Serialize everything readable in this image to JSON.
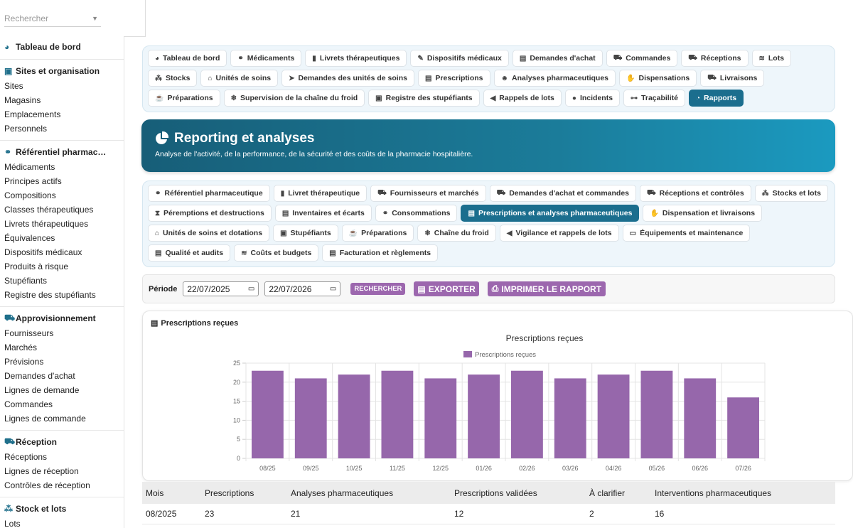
{
  "search": {
    "placeholder": "Rechercher"
  },
  "sidebar": {
    "sections": [
      {
        "title": "Tableau de bord",
        "icon": "gauge-icon",
        "items": []
      },
      {
        "title": "Sites et organisation",
        "icon": "building-icon",
        "items": [
          "Sites",
          "Magasins",
          "Emplacements",
          "Personnels"
        ]
      },
      {
        "title": "Référentiel pharmac…",
        "icon": "pills-icon",
        "items": [
          "Médicaments",
          "Principes actifs",
          "Compositions",
          "Classes thérapeutiques",
          "Livrets thérapeutiques",
          "Équivalences",
          "Dispositifs médicaux",
          "Produits à risque",
          "Stupéfiants",
          "Registre des stupéfiants"
        ]
      },
      {
        "title": "Approvisionnement",
        "icon": "cart-icon",
        "items": [
          "Fournisseurs",
          "Marchés",
          "Prévisions",
          "Demandes d'achat",
          "Lignes de demande",
          "Commandes",
          "Lignes de commande"
        ]
      },
      {
        "title": "Réception",
        "icon": "truck-loading-icon",
        "items": [
          "Réceptions",
          "Lignes de réception",
          "Contrôles de réception"
        ]
      },
      {
        "title": "Stock et lots",
        "icon": "cubes-icon",
        "items": [
          "Lots"
        ]
      }
    ]
  },
  "top_tabs": [
    {
      "label": "Tableau de bord",
      "icon": "gauge-icon",
      "glyph": "◕"
    },
    {
      "label": "Médicaments",
      "icon": "pills-icon",
      "glyph": "⚭"
    },
    {
      "label": "Livrets thérapeutiques",
      "icon": "book-icon",
      "glyph": "▮"
    },
    {
      "label": "Dispositifs médicaux",
      "icon": "syringe-icon",
      "glyph": "✎"
    },
    {
      "label": "Demandes d'achat",
      "icon": "file-icon",
      "glyph": "▤"
    },
    {
      "label": "Commandes",
      "icon": "cart-icon",
      "glyph": "⛟"
    },
    {
      "label": "Réceptions",
      "icon": "truck-loading-icon",
      "glyph": "⛟"
    },
    {
      "label": "Lots",
      "icon": "layers-icon",
      "glyph": "≋"
    },
    {
      "label": "Stocks",
      "icon": "cubes-icon",
      "glyph": "⁂"
    },
    {
      "label": "Unités de soins",
      "icon": "bed-icon",
      "glyph": "⌂"
    },
    {
      "label": "Demandes des unités de soins",
      "icon": "paper-plane-icon",
      "glyph": "➤"
    },
    {
      "label": "Prescriptions",
      "icon": "file-prescription-icon",
      "glyph": "▤"
    },
    {
      "label": "Analyses pharmaceutiques",
      "icon": "user-md-icon",
      "glyph": "☻"
    },
    {
      "label": "Dispensations",
      "icon": "hand-holding-icon",
      "glyph": "✋"
    },
    {
      "label": "Livraisons",
      "icon": "truck-icon",
      "glyph": "⛟"
    },
    {
      "label": "Préparations",
      "icon": "mortar-icon",
      "glyph": "☕"
    },
    {
      "label": "Supervision de la chaîne du froid",
      "icon": "snowflake-icon",
      "glyph": "❄"
    },
    {
      "label": "Registre des stupéfiants",
      "icon": "lock-icon",
      "glyph": "▣"
    },
    {
      "label": "Rappels de lots",
      "icon": "bullhorn-icon",
      "glyph": "◀"
    },
    {
      "label": "Incidents",
      "icon": "exclamation-circle-icon",
      "glyph": "●"
    },
    {
      "label": "Traçabilité",
      "icon": "sitemap-icon",
      "glyph": "⊶"
    },
    {
      "label": "Rapports",
      "icon": "pie-chart-icon",
      "glyph": "◔",
      "active": true
    }
  ],
  "hero": {
    "title": "Reporting et analyses",
    "subtitle": "Analyse de l'activité, de la performance, de la sécurité et des coûts de la pharmacie hospitalière."
  },
  "sub_tabs": [
    {
      "label": "Référentiel pharmaceutique",
      "icon": "pills-icon",
      "glyph": "⚭"
    },
    {
      "label": "Livret thérapeutique",
      "icon": "book-icon",
      "glyph": "▮"
    },
    {
      "label": "Fournisseurs et marchés",
      "icon": "truck-icon",
      "glyph": "⛟"
    },
    {
      "label": "Demandes d'achat et commandes",
      "icon": "cart-icon",
      "glyph": "⛟"
    },
    {
      "label": "Réceptions et contrôles",
      "icon": "truck-loading-icon",
      "glyph": "⛟"
    },
    {
      "label": "Stocks et lots",
      "icon": "cubes-icon",
      "glyph": "⁂"
    },
    {
      "label": "Péremptions et destructions",
      "icon": "hourglass-icon",
      "glyph": "⧗"
    },
    {
      "label": "Inventaires et écarts",
      "icon": "clipboard-icon",
      "glyph": "▤"
    },
    {
      "label": "Consommations",
      "icon": "pills-icon",
      "glyph": "⚭"
    },
    {
      "label": "Prescriptions et analyses pharmaceutiques",
      "icon": "file-prescription-icon",
      "glyph": "▤",
      "active": true
    },
    {
      "label": "Dispensation et livraisons",
      "icon": "hand-holding-icon",
      "glyph": "✋"
    },
    {
      "label": "Unités de soins et dotations",
      "icon": "bed-icon",
      "glyph": "⌂"
    },
    {
      "label": "Stupéfiants",
      "icon": "lock-icon",
      "glyph": "▣"
    },
    {
      "label": "Préparations",
      "icon": "mortar-icon",
      "glyph": "☕"
    },
    {
      "label": "Chaîne du froid",
      "icon": "snowflake-icon",
      "glyph": "❄"
    },
    {
      "label": "Vigilance et rappels de lots",
      "icon": "bullhorn-icon",
      "glyph": "◀"
    },
    {
      "label": "Équipements et maintenance",
      "icon": "desktop-icon",
      "glyph": "▭"
    },
    {
      "label": "Qualité et audits",
      "icon": "clipboard-check-icon",
      "glyph": "▤"
    },
    {
      "label": "Coûts et budgets",
      "icon": "coins-icon",
      "glyph": "≋"
    },
    {
      "label": "Facturation et règlements",
      "icon": "invoice-icon",
      "glyph": "▤"
    }
  ],
  "filters": {
    "period_label": "Période",
    "date_from": "22/07/2025",
    "date_to": "22/07/2026",
    "search_label": "RECHERCHER",
    "export_label": "EXPORTER",
    "print_label": "IMPRIMER LE RAPPORT"
  },
  "card": {
    "title": "Prescriptions reçues"
  },
  "chart_data": {
    "type": "bar",
    "title": "Prescriptions reçues",
    "categories": [
      "08/25",
      "09/25",
      "10/25",
      "11/25",
      "12/25",
      "01/26",
      "02/26",
      "03/26",
      "04/26",
      "05/26",
      "06/26",
      "07/26"
    ],
    "series": [
      {
        "name": "Prescriptions reçues",
        "values": [
          23,
          21,
          22,
          23,
          21,
          22,
          23,
          21,
          22,
          23,
          21,
          16
        ],
        "color": "#9667ab"
      }
    ],
    "ylim": [
      0,
      25
    ],
    "yticks": [
      0,
      5,
      10,
      15,
      20,
      25
    ],
    "grid": true,
    "legend": "top"
  },
  "table": {
    "headers": [
      "Mois",
      "Prescriptions",
      "Analyses pharmaceutiques",
      "Prescriptions validées",
      "À clarifier",
      "Interventions pharmaceutiques"
    ],
    "rows": [
      [
        "08/2025",
        "23",
        "21",
        "12",
        "2",
        "16"
      ]
    ]
  }
}
